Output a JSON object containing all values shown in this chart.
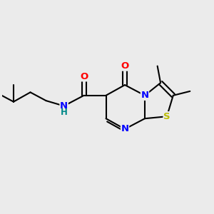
{
  "bg_color": "#ebebeb",
  "bond_color": "#000000",
  "bond_width": 1.5,
  "atom_colors": {
    "N": "#0000ff",
    "O": "#ff0000",
    "S": "#bbbb00",
    "H": "#008888"
  },
  "font_size": 9.5,
  "figsize": [
    3.0,
    3.0
  ],
  "dpi": 100
}
